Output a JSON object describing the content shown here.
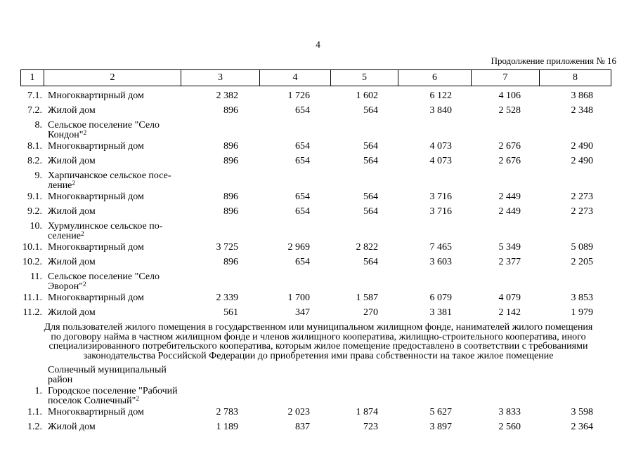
{
  "colors": {
    "text": "#000000",
    "background": "#ffffff",
    "border": "#000000"
  },
  "page": {
    "number": "4",
    "continuation": "Продолжение приложения № 16"
  },
  "table": {
    "header": [
      "1",
      "2",
      "3",
      "4",
      "5",
      "6",
      "7",
      "8"
    ],
    "rows_top": [
      {
        "type": "data",
        "num": "7.1.",
        "lines": [
          {
            "t": "Многоквартирный дом"
          }
        ],
        "values": [
          "2 382",
          "1 726",
          "1 602",
          "6 122",
          "4 106",
          "3 868"
        ]
      },
      {
        "type": "data",
        "num": "7.2.",
        "lines": [
          {
            "t": "Жилой дом"
          }
        ],
        "values": [
          "896",
          "654",
          "564",
          "3 840",
          "2 528",
          "2 348"
        ]
      },
      {
        "type": "section",
        "num": "8.",
        "lines": [
          {
            "t": "Сельское поселение \"Село"
          },
          {
            "t": "Кондон\"",
            "s": "2"
          }
        ],
        "values": []
      },
      {
        "type": "data",
        "num": "8.1.",
        "lines": [
          {
            "t": "Многоквартирный дом"
          }
        ],
        "values": [
          "896",
          "654",
          "564",
          "4 073",
          "2 676",
          "2 490"
        ]
      },
      {
        "type": "data",
        "num": "8.2.",
        "lines": [
          {
            "t": "Жилой дом"
          }
        ],
        "values": [
          "896",
          "654",
          "564",
          "4 073",
          "2 676",
          "2 490"
        ]
      },
      {
        "type": "section",
        "num": "9.",
        "lines": [
          {
            "t": "Харпичанское сельское посе-"
          },
          {
            "t": "ление",
            "s": "2"
          }
        ],
        "values": []
      },
      {
        "type": "data",
        "num": "9.1.",
        "lines": [
          {
            "t": "Многоквартирный дом"
          }
        ],
        "values": [
          "896",
          "654",
          "564",
          "3 716",
          "2 449",
          "2 273"
        ]
      },
      {
        "type": "data",
        "num": "9.2.",
        "lines": [
          {
            "t": "Жилой дом"
          }
        ],
        "values": [
          "896",
          "654",
          "564",
          "3 716",
          "2 449",
          "2 273"
        ]
      },
      {
        "type": "section",
        "num": "10.",
        "lines": [
          {
            "t": "Хурмулинское сельское по-"
          },
          {
            "t": "селение",
            "s": "2"
          }
        ],
        "values": []
      },
      {
        "type": "data",
        "num": "10.1.",
        "lines": [
          {
            "t": "Многоквартирный дом"
          }
        ],
        "values": [
          "3 725",
          "2 969",
          "2 822",
          "7 465",
          "5 349",
          "5 089"
        ]
      },
      {
        "type": "data",
        "num": "10.2.",
        "lines": [
          {
            "t": "Жилой дом"
          }
        ],
        "values": [
          "896",
          "654",
          "564",
          "3 603",
          "2 377",
          "2 205"
        ]
      },
      {
        "type": "section",
        "num": "11.",
        "lines": [
          {
            "t": "Сельское поселение \"Село"
          },
          {
            "t": "Эворон\"",
            "s": "2"
          }
        ],
        "values": []
      },
      {
        "type": "data",
        "num": "11.1.",
        "lines": [
          {
            "t": "Многоквартирный дом"
          }
        ],
        "values": [
          "2 339",
          "1 700",
          "1 587",
          "6 079",
          "4 079",
          "3 853"
        ]
      },
      {
        "type": "data",
        "num": "11.2.",
        "lines": [
          {
            "t": "Жилой дом"
          }
        ],
        "values": [
          "561",
          "347",
          "270",
          "3 381",
          "2 142",
          "1 979"
        ]
      }
    ],
    "note_lines": [
      "Для пользователей жилого помещения в государственном или муниципальном жилищном фонде, нанимателей жилого помещения",
      "по договору найма в частном жилищном фонде и членов жилищного кооператива, жилищно-строительного кооператива, иного",
      "специализированного потребительского кооператива, которым жилое помещение предоставлено в соответствии с требованиями",
      "законодательства Российской Федерации до приобретения ими права собственности на такое жилое помещение"
    ],
    "rows_bottom": [
      {
        "type": "plain",
        "num": "",
        "lines": [
          {
            "t": "Солнечный муниципальный"
          },
          {
            "t": "район"
          }
        ],
        "values": []
      },
      {
        "type": "section",
        "num": "1.",
        "lines": [
          {
            "t": "Городское поселение \"Рабочий"
          },
          {
            "t": "поселок Солнечный\"",
            "s": "2"
          }
        ],
        "values": []
      },
      {
        "type": "data",
        "num": "1.1.",
        "lines": [
          {
            "t": "Многоквартирный дом"
          }
        ],
        "values": [
          "2 783",
          "2 023",
          "1 874",
          "5 627",
          "3 833",
          "3 598"
        ]
      },
      {
        "type": "data",
        "num": "1.2.",
        "lines": [
          {
            "t": "Жилой дом"
          }
        ],
        "values": [
          "1 189",
          "837",
          "723",
          "3 897",
          "2 560",
          "2 364"
        ]
      }
    ]
  }
}
